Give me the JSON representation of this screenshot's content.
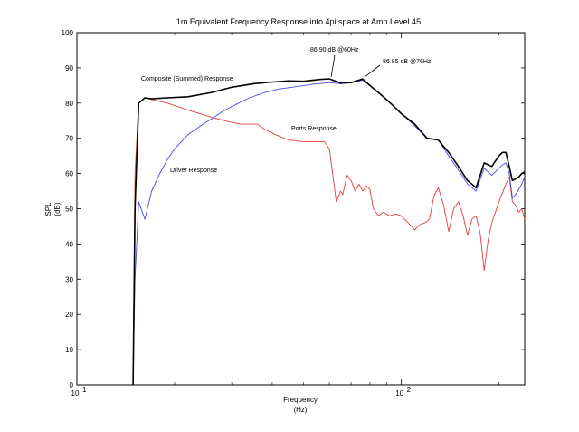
{
  "chart_data": {
    "type": "line",
    "title": "1m Equivalent Frequency Response into 4pi space at Amp Level 45",
    "xlabel": "Frequency",
    "xlabel_unit": "(Hz)",
    "ylabel": "SPL",
    "ylabel_unit": "(dB)",
    "xscale": "log",
    "xlim": [
      10,
      240
    ],
    "ylim": [
      0,
      100
    ],
    "x_ticks": [
      {
        "value": 10,
        "base": "10",
        "exp": "1"
      },
      {
        "value": 100,
        "base": "10",
        "exp": "2"
      }
    ],
    "y_ticks": [
      0,
      10,
      20,
      30,
      40,
      50,
      60,
      70,
      80,
      90,
      100
    ],
    "grid": false,
    "legend": "none",
    "series": [
      {
        "name": "Composite (Summed) Response",
        "color": "#000000",
        "x": [
          14.9,
          15.1,
          15.5,
          16.2,
          17,
          19,
          22,
          26,
          30,
          35,
          40,
          45,
          50,
          56,
          60,
          65,
          70,
          76,
          80,
          85,
          90,
          95,
          100,
          110,
          120,
          130,
          140,
          150,
          160,
          170,
          180,
          190,
          200,
          205,
          210,
          215,
          220,
          225,
          230,
          235,
          240
        ],
        "y": [
          0,
          50,
          80,
          81.5,
          81.2,
          81.5,
          81.8,
          83,
          84.5,
          85.5,
          86,
          86.3,
          86.2,
          86.7,
          86.9,
          85.7,
          85.8,
          86.85,
          85,
          83,
          81,
          79,
          77,
          74,
          70,
          69.5,
          66,
          62,
          58,
          56,
          63,
          62,
          65,
          66,
          66,
          62,
          58,
          58.5,
          59,
          60,
          60.5
        ]
      },
      {
        "name": "Driver Response",
        "color": "#4a4ae6",
        "x": [
          14.9,
          15.1,
          15.5,
          16.2,
          17,
          18,
          19,
          20,
          22,
          24,
          26,
          28,
          30,
          34,
          38,
          42,
          46,
          50,
          55,
          60,
          65,
          70,
          76,
          80,
          85,
          90,
          95,
          100,
          110,
          120,
          130,
          140,
          150,
          160,
          170,
          180,
          190,
          200,
          205,
          210,
          215,
          220,
          225,
          230,
          235,
          240
        ],
        "y": [
          0,
          30,
          52,
          47,
          55,
          60,
          64,
          67,
          71,
          73.5,
          75.5,
          77.5,
          79,
          81.5,
          83,
          84,
          84.5,
          85,
          85.5,
          85.8,
          85.5,
          85.8,
          86.5,
          85,
          83,
          81,
          79,
          77,
          73.5,
          70,
          69.5,
          65,
          61,
          57,
          55,
          61.5,
          59.5,
          61.5,
          62.5,
          63,
          60,
          53,
          54,
          55.5,
          57,
          59
        ]
      },
      {
        "name": "Ports Response",
        "color": "#e63c3c",
        "x": [
          14.9,
          15.1,
          15.5,
          16.2,
          17,
          19,
          22,
          26,
          30,
          32,
          34,
          36,
          38,
          41,
          45,
          50,
          55,
          58,
          60,
          62,
          63,
          65,
          66,
          68,
          70,
          72,
          74,
          76,
          78,
          80,
          82,
          85,
          88,
          92,
          96,
          100,
          105,
          110,
          114,
          118,
          122,
          126,
          130,
          135,
          140,
          145,
          150,
          155,
          160,
          165,
          170,
          175,
          180,
          185,
          190,
          200,
          210,
          215,
          220,
          225,
          230,
          235,
          240
        ],
        "y": [
          0,
          60,
          80,
          81.5,
          81,
          80,
          78,
          76,
          74.5,
          74,
          74,
          74,
          72.5,
          71,
          69.5,
          69,
          69,
          69,
          67,
          57,
          52,
          55,
          54,
          59.5,
          58,
          55,
          57,
          55,
          56.5,
          55.5,
          50,
          48,
          49,
          48,
          48.5,
          48,
          46,
          44,
          45.5,
          46,
          47,
          53.5,
          56,
          51,
          43.5,
          50,
          52,
          48,
          42.5,
          47,
          48,
          43,
          32.5,
          41,
          46,
          52,
          57,
          59,
          52,
          51,
          49,
          50,
          47
        ]
      }
    ],
    "annotations": [
      {
        "text": "Composite (Summed) Response"
      },
      {
        "text": "Ports Response"
      },
      {
        "text": "Driver Response"
      },
      {
        "text": "86.90 dB @60Hz",
        "points_to": {
          "x": 60,
          "y": 86.9
        }
      },
      {
        "text": "86.85 dB @76Hz",
        "points_to": {
          "x": 76,
          "y": 86.85
        }
      }
    ]
  }
}
